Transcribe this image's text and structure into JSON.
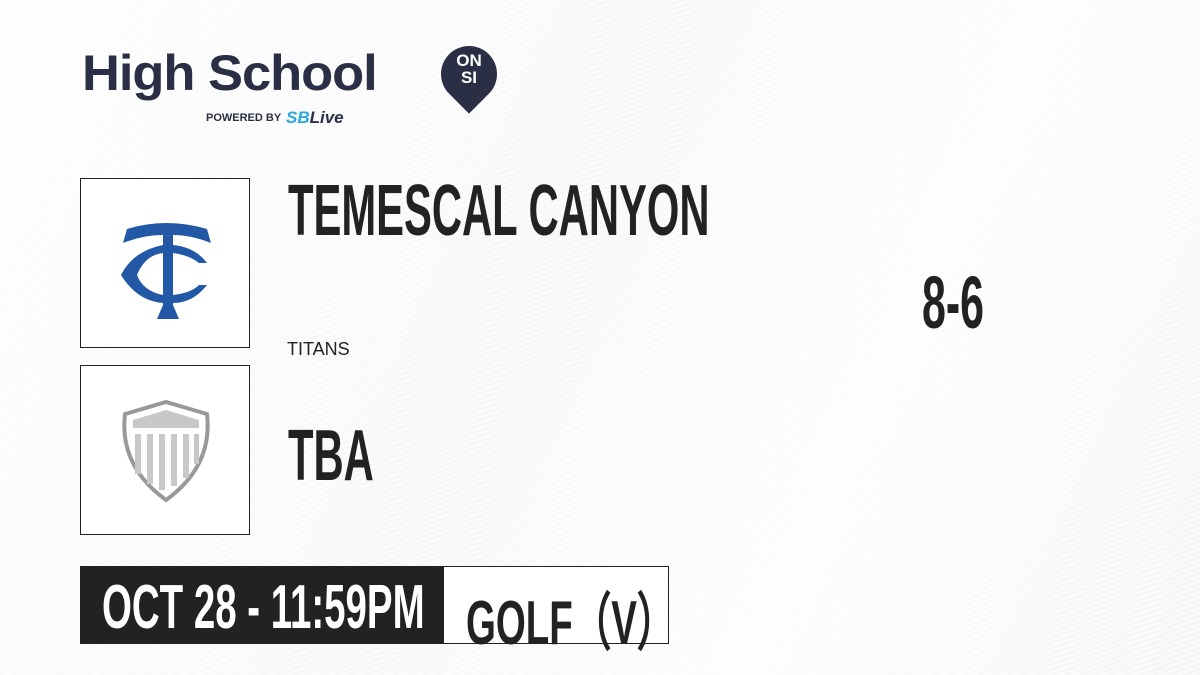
{
  "brand": {
    "title": "High School",
    "badge_line1": "ON",
    "badge_line2": "SI",
    "powered_by": "POWERED BY",
    "partner_prefix": "SB",
    "partner_suffix": "Live"
  },
  "home_team": {
    "name": "TEMESCAL CANYON",
    "mascot": "TITANS",
    "logo_color": "#2358a6"
  },
  "away_team": {
    "name": "TBA"
  },
  "score": "8-6",
  "game": {
    "date_time": "OCT 28 - 11:59PM",
    "sport": "GOLF（V）"
  }
}
